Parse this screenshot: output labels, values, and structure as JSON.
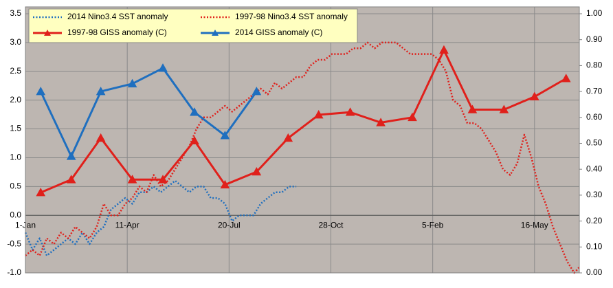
{
  "chart_data": {
    "type": "line",
    "xlim": [
      0,
      544
    ],
    "xticks": [
      {
        "value": 0,
        "label": "1-Jan"
      },
      {
        "value": 100,
        "label": "11-Apr"
      },
      {
        "value": 200,
        "label": "20-Jul"
      },
      {
        "value": 300,
        "label": "28-Oct"
      },
      {
        "value": 400,
        "label": "5-Feb"
      },
      {
        "value": 500,
        "label": "16-May"
      }
    ],
    "ylim": [
      -1,
      3.5
    ],
    "yticks": [
      {
        "value": -1,
        "label": "-1.0"
      },
      {
        "value": -0.5,
        "label": "-0.5"
      },
      {
        "value": 0,
        "label": "0.0"
      },
      {
        "value": 0.5,
        "label": "0.5"
      },
      {
        "value": 1,
        "label": "1.0"
      },
      {
        "value": 1.5,
        "label": "1.5"
      },
      {
        "value": 2,
        "label": "2.0"
      },
      {
        "value": 2.5,
        "label": "2.5"
      },
      {
        "value": 3,
        "label": "3.0"
      },
      {
        "value": 3.5,
        "label": "3.5"
      }
    ],
    "y2lim": [
      0,
      1
    ],
    "y2ticks": [
      {
        "value": 0,
        "label": "0.00"
      },
      {
        "value": 0.1,
        "label": "0.10"
      },
      {
        "value": 0.2,
        "label": "0.20"
      },
      {
        "value": 0.3,
        "label": "0.30"
      },
      {
        "value": 0.4,
        "label": "0.40"
      },
      {
        "value": 0.5,
        "label": "0.50"
      },
      {
        "value": 0.6,
        "label": "0.60"
      },
      {
        "value": 0.7,
        "label": "0.70"
      },
      {
        "value": 0.8,
        "label": "0.80"
      },
      {
        "value": 0.9,
        "label": "0.90"
      },
      {
        "value": 1,
        "label": "1.00"
      }
    ],
    "grid": true,
    "legend": "top-left",
    "series": [
      {
        "name": "2014 Nino3.4 SST anomaly",
        "color": "#1f6fbf",
        "style": "dotted",
        "axis": "y",
        "x": [
          0,
          7,
          14,
          21,
          28,
          35,
          42,
          49,
          56,
          63,
          70,
          77,
          84,
          91,
          98,
          105,
          112,
          119,
          126,
          133,
          140,
          147,
          154,
          161,
          168,
          175,
          182,
          189,
          196,
          203,
          210,
          217,
          224,
          231,
          238,
          245,
          252,
          259,
          266
        ],
        "values": [
          -0.3,
          -0.6,
          -0.4,
          -0.7,
          -0.6,
          -0.5,
          -0.4,
          -0.5,
          -0.3,
          -0.5,
          -0.3,
          -0.2,
          0.1,
          0.2,
          0.3,
          0.2,
          0.4,
          0.4,
          0.5,
          0.4,
          0.5,
          0.6,
          0.5,
          0.4,
          0.5,
          0.5,
          0.3,
          0.3,
          0.2,
          -0.1,
          0.0,
          0.0,
          0.0,
          0.2,
          0.3,
          0.4,
          0.4,
          0.5,
          0.5
        ]
      },
      {
        "name": "1997-98 Nino3.4 SST anomaly",
        "color": "#e0201b",
        "style": "dotted",
        "axis": "y",
        "x": [
          0,
          7,
          14,
          21,
          28,
          35,
          42,
          49,
          56,
          63,
          70,
          77,
          84,
          91,
          98,
          105,
          112,
          119,
          126,
          133,
          140,
          147,
          154,
          161,
          168,
          175,
          182,
          189,
          196,
          203,
          210,
          217,
          224,
          231,
          238,
          245,
          252,
          259,
          266,
          273,
          280,
          287,
          294,
          301,
          308,
          315,
          322,
          329,
          336,
          343,
          350,
          357,
          364,
          371,
          378,
          385,
          392,
          399,
          406,
          413,
          420,
          427,
          434,
          441,
          448,
          455,
          462,
          469,
          476,
          483,
          490,
          497,
          504,
          511,
          518,
          525,
          532,
          539,
          544
        ],
        "values": [
          -0.7,
          -0.6,
          -0.7,
          -0.4,
          -0.5,
          -0.3,
          -0.4,
          -0.2,
          -0.3,
          -0.4,
          -0.2,
          0.2,
          0.0,
          0.0,
          0.2,
          0.3,
          0.5,
          0.4,
          0.7,
          0.5,
          0.6,
          0.8,
          1.0,
          1.2,
          1.5,
          1.7,
          1.7,
          1.8,
          1.9,
          1.8,
          1.9,
          2.0,
          2.1,
          2.2,
          2.1,
          2.3,
          2.2,
          2.3,
          2.4,
          2.4,
          2.6,
          2.7,
          2.7,
          2.8,
          2.8,
          2.8,
          2.9,
          2.9,
          3.0,
          2.9,
          3.0,
          3.0,
          3.0,
          2.9,
          2.8,
          2.8,
          2.8,
          2.8,
          2.7,
          2.5,
          2.0,
          1.9,
          1.6,
          1.6,
          1.5,
          1.3,
          1.1,
          0.8,
          0.7,
          0.9,
          1.4,
          1.0,
          0.5,
          0.2,
          -0.2,
          -0.5,
          -0.8,
          -1.0,
          -0.9
        ]
      },
      {
        "name": "1997-98 GISS anomaly (C)",
        "color": "#e0201b",
        "style": "solid",
        "marker": "triangle",
        "axis": "y2",
        "x": [
          15,
          45,
          74,
          105,
          135,
          166,
          196,
          227,
          258,
          288,
          319,
          349,
          380,
          411,
          439,
          470,
          500,
          531
        ],
        "values": [
          0.31,
          0.36,
          0.52,
          0.36,
          0.36,
          0.51,
          0.34,
          0.39,
          0.52,
          0.61,
          0.62,
          0.58,
          0.6,
          0.86,
          0.63,
          0.63,
          0.68,
          0.75
        ]
      },
      {
        "name": "2014 GISS anomaly (C)",
        "color": "#1f6fbf",
        "style": "solid",
        "marker": "triangle",
        "axis": "y2",
        "x": [
          15,
          45,
          74,
          105,
          135,
          166,
          196,
          227
        ],
        "values": [
          0.7,
          0.45,
          0.7,
          0.73,
          0.79,
          0.62,
          0.53,
          0.7
        ]
      }
    ]
  }
}
